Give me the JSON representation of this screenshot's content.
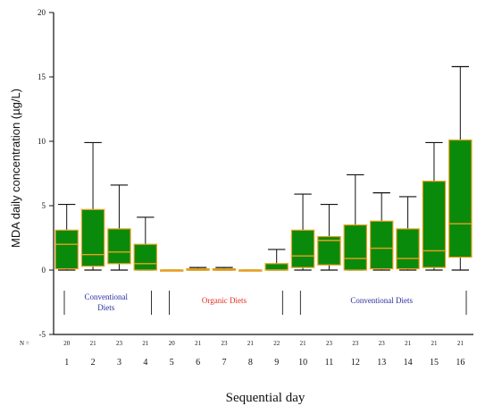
{
  "chart_data": {
    "type": "box",
    "xlabel": "Sequential day",
    "ylabel": "MDA daily concentration (µg/L)",
    "ylim": [
      -5,
      20
    ],
    "y_ticks": [
      -5,
      0,
      5,
      10,
      15,
      20
    ],
    "n_label": "N =",
    "categories": [
      "1",
      "2",
      "3",
      "4",
      "5",
      "6",
      "7",
      "8",
      "9",
      "10",
      "11",
      "12",
      "13",
      "14",
      "15",
      "16"
    ],
    "n_values": [
      "20",
      "21",
      "23",
      "21",
      "20",
      "21",
      "23",
      "21",
      "22",
      "21",
      "23",
      "23",
      "23",
      "21",
      "21",
      "21"
    ],
    "boxes": [
      {
        "day": "1",
        "min": 0,
        "q1": 0.1,
        "median": 2.0,
        "q3": 3.1,
        "max": 5.1
      },
      {
        "day": "2",
        "min": 0,
        "q1": 0.3,
        "median": 1.2,
        "q3": 4.7,
        "max": 9.9
      },
      {
        "day": "3",
        "min": 0,
        "q1": 0.5,
        "median": 1.4,
        "q3": 3.2,
        "max": 6.6
      },
      {
        "day": "4",
        "min": 0,
        "q1": 0,
        "median": 0.5,
        "q3": 2.0,
        "max": 4.1
      },
      {
        "day": "5",
        "min": 0,
        "q1": 0,
        "median": 0,
        "q3": 0,
        "max": 0
      },
      {
        "day": "6",
        "min": 0,
        "q1": 0,
        "median": 0,
        "q3": 0.1,
        "max": 0.2
      },
      {
        "day": "7",
        "min": 0,
        "q1": 0,
        "median": 0,
        "q3": 0.1,
        "max": 0.2
      },
      {
        "day": "8",
        "min": 0,
        "q1": 0,
        "median": 0,
        "q3": 0,
        "max": 0
      },
      {
        "day": "9",
        "min": 0,
        "q1": 0,
        "median": 0,
        "q3": 0.5,
        "max": 1.6
      },
      {
        "day": "10",
        "min": 0,
        "q1": 0.2,
        "median": 1.1,
        "q3": 3.1,
        "max": 5.9
      },
      {
        "day": "11",
        "min": 0,
        "q1": 0.4,
        "median": 2.3,
        "q3": 2.6,
        "max": 5.1
      },
      {
        "day": "12",
        "min": 0,
        "q1": 0,
        "median": 0.9,
        "q3": 3.5,
        "max": 7.4
      },
      {
        "day": "13",
        "min": 0,
        "q1": 0.1,
        "median": 1.7,
        "q3": 3.8,
        "max": 6.0
      },
      {
        "day": "14",
        "min": 0,
        "q1": 0.1,
        "median": 0.9,
        "q3": 3.2,
        "max": 5.7
      },
      {
        "day": "15",
        "min": 0,
        "q1": 0.2,
        "median": 1.5,
        "q3": 6.9,
        "max": 9.9
      },
      {
        "day": "16",
        "min": 0,
        "q1": 1.0,
        "median": 3.6,
        "q3": 10.1,
        "max": 15.8
      }
    ],
    "annotations": [
      {
        "text": "Conventional Diets",
        "color": "#2a2fa0",
        "from_day": "1",
        "to_day": "4"
      },
      {
        "text": "Organic Diets",
        "color": "#e0301e",
        "from_day": "5",
        "to_day": "9"
      },
      {
        "text": "Conventional Diets",
        "color": "#2a2fa0",
        "from_day": "10",
        "to_day": "16"
      }
    ],
    "colors": {
      "box_fill": "#0a8a0a",
      "box_edge": "#e8a020",
      "whisker": "#111111",
      "axis": "#111111"
    }
  }
}
